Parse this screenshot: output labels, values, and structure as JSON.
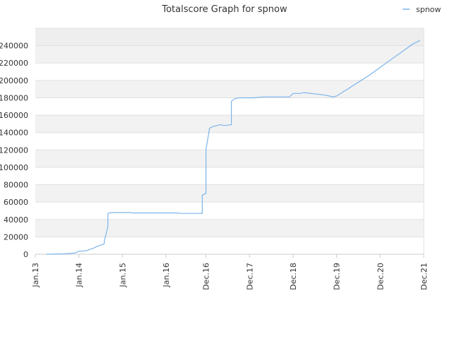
{
  "chart_data": {
    "type": "line",
    "title": "Totalscore Graph for spnow",
    "xlabel": "",
    "ylabel": "",
    "legend": "top-right",
    "grid": true,
    "ylim": [
      0,
      260000
    ],
    "yticks": [
      0,
      20000,
      40000,
      60000,
      80000,
      100000,
      120000,
      140000,
      160000,
      180000,
      200000,
      220000,
      240000
    ],
    "xlim": [
      "2013-01",
      "2021-12"
    ],
    "xticks": [
      {
        "label": "Jan.13",
        "date": "2013-01"
      },
      {
        "label": "Jan.14",
        "date": "2014-01"
      },
      {
        "label": "Jan.15",
        "date": "2015-01"
      },
      {
        "label": "Jan.16",
        "date": "2016-01"
      },
      {
        "label": "Dec.16",
        "date": "2016-12"
      },
      {
        "label": "Dec.17",
        "date": "2017-12"
      },
      {
        "label": "Dec.18",
        "date": "2018-12"
      },
      {
        "label": "Dec.19",
        "date": "2019-12"
      },
      {
        "label": "Dec.20",
        "date": "2020-12"
      },
      {
        "label": "Dec.21",
        "date": "2021-12"
      }
    ],
    "series": [
      {
        "name": "spnow",
        "color": "#7cb5ec",
        "points": [
          [
            "2013-04",
            0
          ],
          [
            "2013-09",
            500
          ],
          [
            "2013-12",
            1500
          ],
          [
            "2014-01",
            3500
          ],
          [
            "2014-03",
            4000
          ],
          [
            "2014-04",
            5500
          ],
          [
            "2014-05",
            7000
          ],
          [
            "2014-06",
            9000
          ],
          [
            "2014-07",
            10500
          ],
          [
            "2014-08",
            12000
          ],
          [
            "2014-08",
            15000
          ],
          [
            "2014-09",
            32000
          ],
          [
            "2014-09",
            47000
          ],
          [
            "2014-10",
            48000
          ],
          [
            "2015-03",
            48000
          ],
          [
            "2015-04",
            47500
          ],
          [
            "2016-04",
            47500
          ],
          [
            "2016-05",
            47000
          ],
          [
            "2016-11",
            47000
          ],
          [
            "2016-11",
            68000
          ],
          [
            "2016-12",
            70000
          ],
          [
            "2016-12",
            120000
          ],
          [
            "2017-01",
            145000
          ],
          [
            "2017-02",
            147000
          ],
          [
            "2017-03",
            148000
          ],
          [
            "2017-04",
            149000
          ],
          [
            "2017-05",
            148000
          ],
          [
            "2017-07",
            149000
          ],
          [
            "2017-07",
            176000
          ],
          [
            "2017-08",
            179000
          ],
          [
            "2017-09",
            180000
          ],
          [
            "2018-01",
            180000
          ],
          [
            "2018-04",
            181000
          ],
          [
            "2018-11",
            181000
          ],
          [
            "2018-12",
            185000
          ],
          [
            "2019-02",
            185000
          ],
          [
            "2019-03",
            186000
          ],
          [
            "2019-05",
            185000
          ],
          [
            "2019-09",
            183000
          ],
          [
            "2019-10",
            182000
          ],
          [
            "2019-11",
            181000
          ],
          [
            "2019-12",
            182000
          ],
          [
            "2020-03",
            190000
          ],
          [
            "2020-06",
            198000
          ],
          [
            "2020-09",
            206000
          ],
          [
            "2020-12",
            215000
          ],
          [
            "2021-03",
            224000
          ],
          [
            "2021-06",
            233000
          ],
          [
            "2021-09",
            242000
          ],
          [
            "2021-11",
            246000
          ]
        ]
      }
    ]
  }
}
